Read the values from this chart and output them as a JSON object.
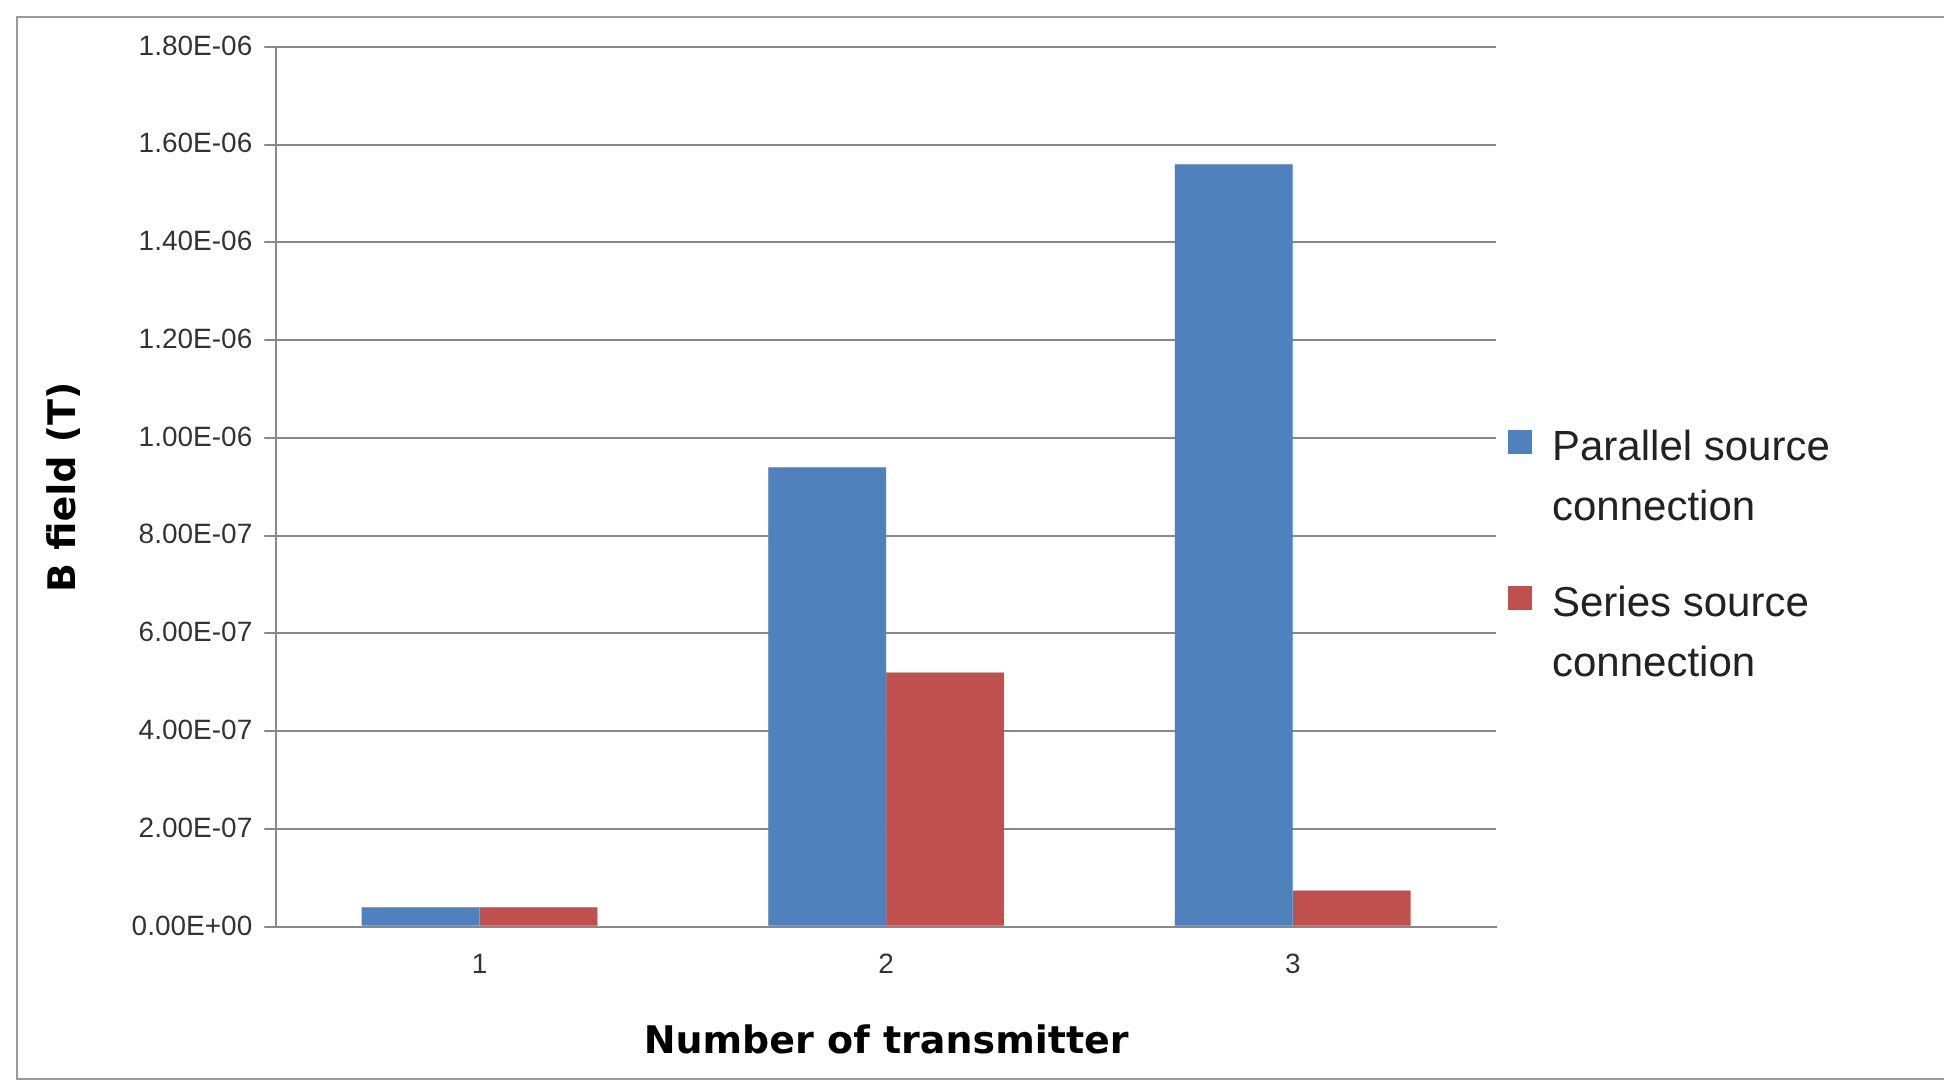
{
  "chart_data": {
    "type": "bar",
    "xlabel": "Number of transmitter",
    "ylabel": "B field (T)",
    "categories": [
      "1",
      "2",
      "3"
    ],
    "series": [
      {
        "name": "Parallel source connection",
        "color": "#4f81bd",
        "values": [
          4e-08,
          9.4e-07,
          1.56e-06
        ]
      },
      {
        "name": "Series source connection",
        "color": "#c0504d",
        "values": [
          4e-08,
          5.2e-07,
          7.4e-08
        ]
      }
    ],
    "ylim": [
      0,
      1.8e-06
    ],
    "yticks": [
      {
        "value": 0,
        "label": "0.00E+00"
      },
      {
        "value": 2e-07,
        "label": "2.00E-07"
      },
      {
        "value": 4e-07,
        "label": "4.00E-07"
      },
      {
        "value": 6e-07,
        "label": "6.00E-07"
      },
      {
        "value": 8e-07,
        "label": "8.00E-07"
      },
      {
        "value": 1e-06,
        "label": "1.00E-06"
      },
      {
        "value": 1.2e-06,
        "label": "1.20E-06"
      },
      {
        "value": 1.4e-06,
        "label": "1.40E-06"
      },
      {
        "value": 1.6e-06,
        "label": "1.60E-06"
      },
      {
        "value": 1.8e-06,
        "label": "1.80E-06"
      }
    ],
    "grid": "y",
    "legend": "right"
  }
}
